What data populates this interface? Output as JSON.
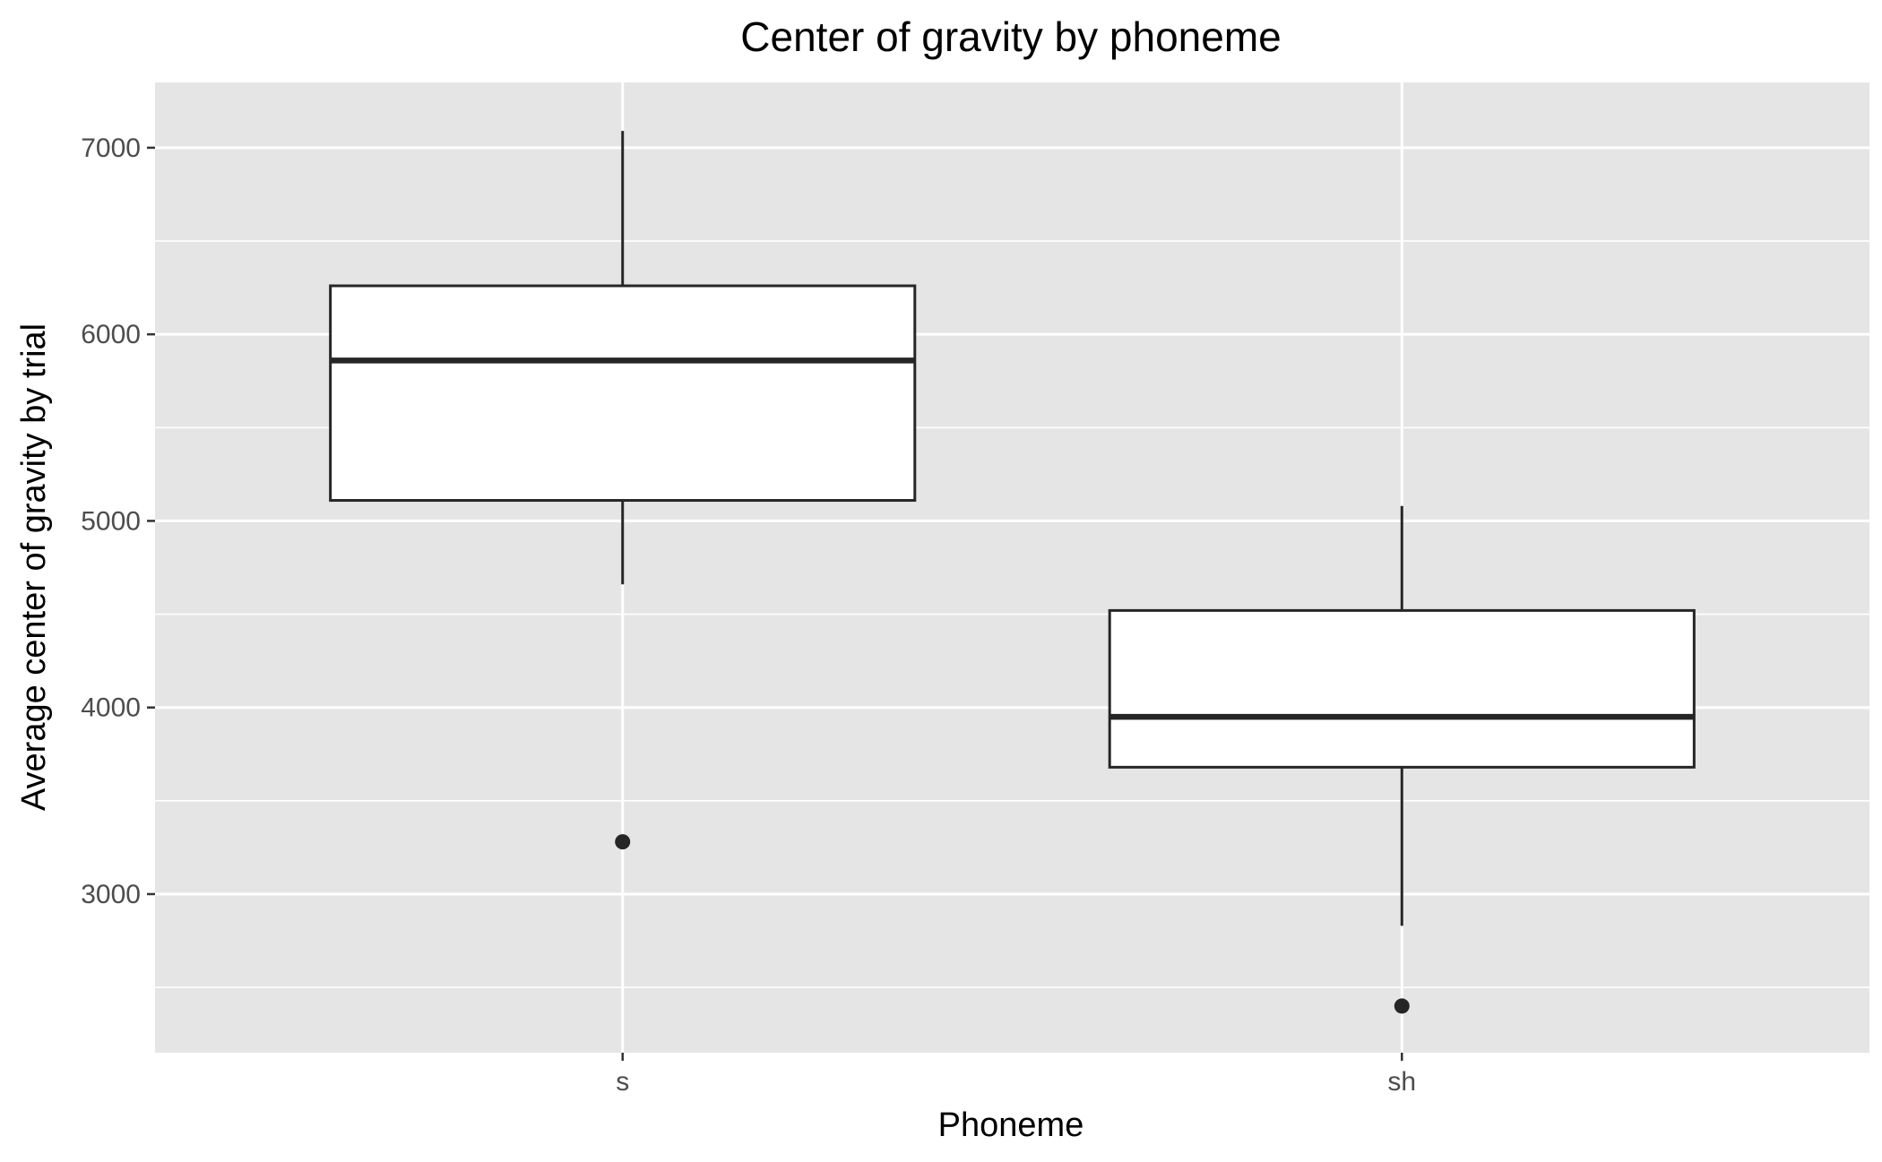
{
  "chart_data": {
    "type": "boxplot",
    "title": "Center of gravity by phoneme",
    "xlabel": "Phoneme",
    "ylabel": "Average center of gravity by trial",
    "categories": [
      "s",
      "sh"
    ],
    "ylim": [
      2150,
      7350
    ],
    "yticks": [
      3000,
      4000,
      5000,
      6000,
      7000
    ],
    "yticks_minor": [
      2500,
      3500,
      4500,
      5500,
      6500
    ],
    "boxes": [
      {
        "category": "s",
        "whisker_low": 4660,
        "q1": 5110,
        "median": 5860,
        "q3": 6260,
        "whisker_high": 7090,
        "outliers": [
          3280
        ]
      },
      {
        "category": "sh",
        "whisker_low": 2830,
        "q1": 3680,
        "median": 3950,
        "q3": 4520,
        "whisker_high": 5080,
        "outliers": [
          2400
        ]
      }
    ],
    "grid": true,
    "legend": "none",
    "colors": {
      "panel": "#e5e5e5",
      "grid": "#ffffff",
      "box_fill": "#ffffff",
      "box_line": "#262626",
      "text": "#000000",
      "tick_text": "#4d4d4d",
      "tick_mark": "#333333"
    }
  }
}
